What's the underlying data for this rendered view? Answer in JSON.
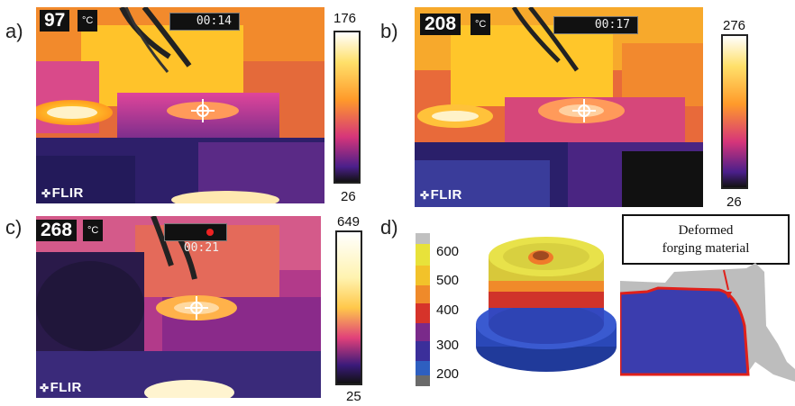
{
  "panels": [
    {
      "label": "a)",
      "temp": "97",
      "unit": "°C",
      "timer": "00:14",
      "brand": "FLIR",
      "scale_max": "176",
      "scale_min": "26"
    },
    {
      "label": "b)",
      "temp": "208",
      "unit": "°C",
      "timer": "00:17",
      "brand": "FLIR",
      "scale_max": "276",
      "scale_min": "26"
    },
    {
      "label": "c)",
      "temp": "268",
      "unit": "°C",
      "timer": "00:21",
      "brand": "FLIR",
      "scale_max": "649",
      "scale_min": "25"
    }
  ],
  "simulation": {
    "label": "d)",
    "legend": [
      "600",
      "500",
      "400",
      "300",
      "200"
    ],
    "callout_line1": "Deformed",
    "callout_line2": "forging material"
  },
  "colors": {
    "legend_gradient": [
      "#c8c8c8",
      "#e8e23a",
      "#f0b22a",
      "#e06a2a",
      "#d6332a",
      "#7a2a8a",
      "#3b2f9a",
      "#2e4fb0",
      "#777777"
    ]
  }
}
